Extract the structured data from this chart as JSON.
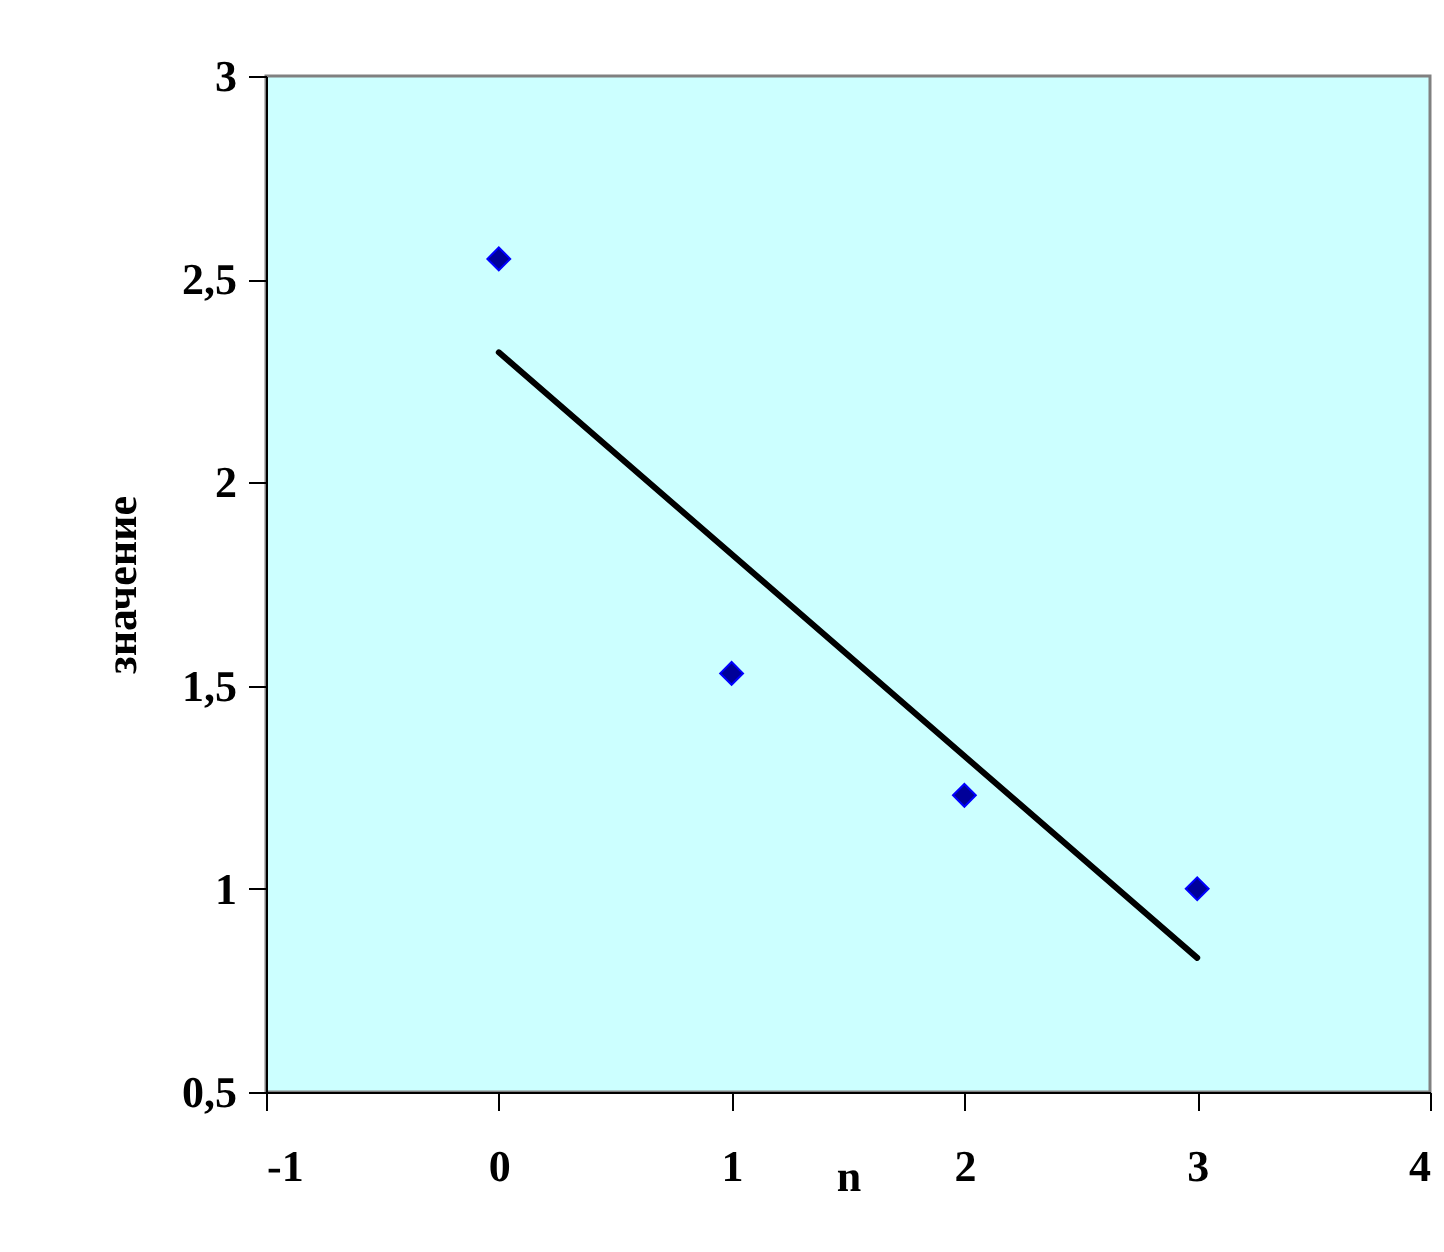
{
  "chart_data": {
    "type": "scatter",
    "xlabel": "n",
    "ylabel": "значение",
    "xlim": [
      -1,
      4
    ],
    "xticks": [
      -1,
      0,
      1,
      2,
      3,
      4
    ],
    "ylim": [
      0.5,
      3
    ],
    "yticks": [
      {
        "value": 0.5,
        "label": "0,5"
      },
      1,
      {
        "value": 1.5,
        "label": "1,5"
      },
      2,
      {
        "value": 2.5,
        "label": "2,5"
      },
      3
    ],
    "grid": false,
    "series": [
      {
        "color": "#000099",
        "marker": "diamond",
        "x": [
          0,
          1,
          2,
          3
        ],
        "values": [
          2.55,
          1.53,
          1.23,
          1.0
        ]
      },
      {
        "type": "line",
        "color": "#000000",
        "marker": "none",
        "x": [
          0,
          3
        ],
        "values": [
          2.32,
          0.83
        ],
        "line_style": "solid"
      }
    ]
  }
}
